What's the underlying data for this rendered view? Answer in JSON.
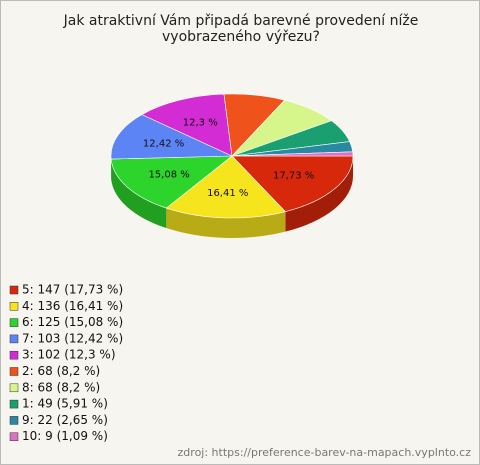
{
  "chart_data": {
    "type": "pie3d",
    "title": "Jak atraktivní Vám připadá barevné provedení níže vyobrazeného výřezu?",
    "categories": [
      "5: 147 (17,73 %)",
      "4: 136 (16,41 %)",
      "6: 125 (15,08 %)",
      "7: 103 (12,42 %)",
      "3: 102 (12,3 %)",
      "2: 68 (8,2 %)",
      "8: 68 (8,2 %)",
      "1: 49 (5,91 %)",
      "9: 22 (2,65 %)",
      "10: 9 (1,09 %)"
    ],
    "values": [
      147,
      136,
      125,
      103,
      102,
      68,
      68,
      49,
      22,
      9
    ],
    "value_labels": [
      "17,73 %",
      "16,41 %",
      "15,08 %",
      "12,42 %",
      "12,3 %",
      null,
      null,
      null,
      null,
      null
    ],
    "colors": [
      "#d8280c",
      "#f6e41c",
      "#2cd42c",
      "#5c84f4",
      "#d42cd4",
      "#f0521c",
      "#d6f68c",
      "#1aa070",
      "#2a88a0",
      "#e070c4"
    ],
    "source": "zdroj: https://preference-barev-na-mapach.vyplnto.cz"
  }
}
